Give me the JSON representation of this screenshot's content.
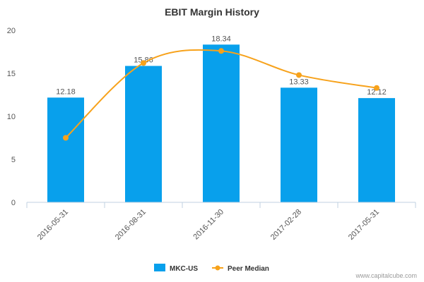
{
  "chart_data": {
    "type": "bar",
    "title": "EBIT Margin History",
    "categories": [
      "2016-05-31",
      "2016-08-31",
      "2016-11-30",
      "2017-02-28",
      "2017-05-31"
    ],
    "series": [
      {
        "name": "MKC-US",
        "type": "bar",
        "color": "#08a0ec",
        "values": [
          12.18,
          15.86,
          18.34,
          13.33,
          12.12
        ],
        "labels": [
          "12.18",
          "15.86",
          "18.34",
          "13.33",
          "12.12"
        ]
      },
      {
        "name": "Peer Median",
        "type": "line",
        "color": "#f7a21b",
        "values": [
          7.5,
          16.2,
          17.6,
          14.8,
          13.3
        ]
      }
    ],
    "yticks": [
      "0",
      "5",
      "10",
      "15",
      "20"
    ],
    "ylim": [
      0,
      20
    ],
    "legend_position": "bottom-center",
    "grid": false
  },
  "credit": "www.capitalcube.com"
}
